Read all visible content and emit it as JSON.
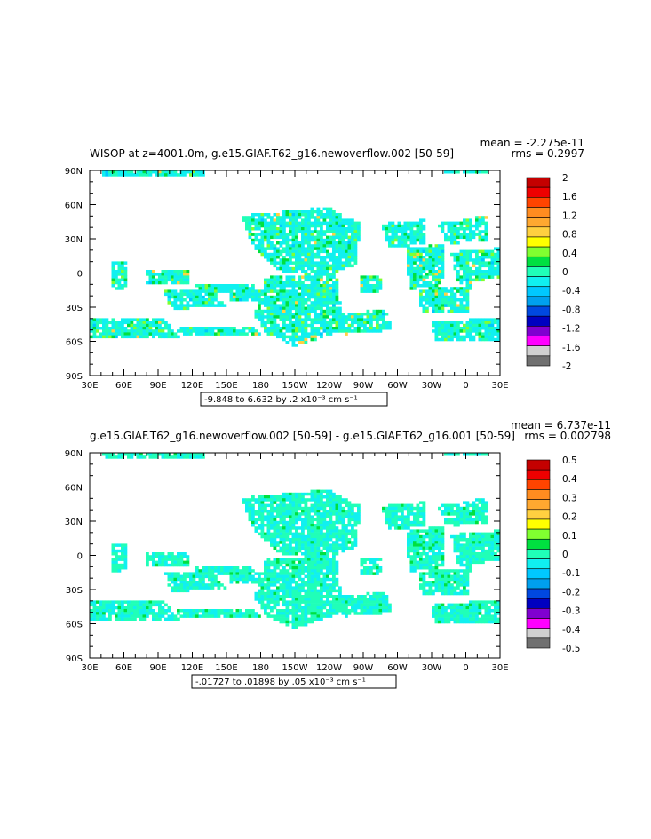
{
  "chart_data": [
    {
      "type": "heatmap",
      "title": "WISOP at z=4001.0m, g.e15.GIAF.T62_g16.newoverflow.002 [50-59]",
      "stats": [
        "mean = -2.275e-11",
        "rms = 0.2997"
      ],
      "x_ticks": [
        "30E",
        "60E",
        "90E",
        "120E",
        "150E",
        "180",
        "150W",
        "120W",
        "90W",
        "60W",
        "30W",
        "0",
        "30E"
      ],
      "y_ticks": [
        "90N",
        "60N",
        "30N",
        "0",
        "30S",
        "60S",
        "90S"
      ],
      "range_label": "-9.848 to 6.632 by .2 x10⁻³ cm s⁻¹",
      "colorbar_labels": [
        "2",
        "1.6",
        "1.2",
        "0.8",
        "0.4",
        "0",
        "-0.4",
        "-0.8",
        "-1.2",
        "-1.6",
        "-2"
      ],
      "colorbar_min": -2,
      "colorbar_max": 2,
      "colorbar_colors": [
        "#c40000",
        "#ee0000",
        "#ff4400",
        "#ff8c20",
        "#ffa830",
        "#ffd040",
        "#ffff00",
        "#80ff30",
        "#00e040",
        "#20ffb8",
        "#10f0f0",
        "#00c8ff",
        "#00a0ee",
        "#0048e0",
        "#0000c0",
        "#8000d0",
        "#ff00ff",
        "#d0d0d0",
        "#707070"
      ]
    },
    {
      "type": "heatmap",
      "title": "g.e15.GIAF.T62_g16.newoverflow.002 [50-59] - g.e15.GIAF.T62_g16.001 [50-59]",
      "stats": [
        "mean = 6.737e-11",
        "rms = 0.002798"
      ],
      "x_ticks": [
        "30E",
        "60E",
        "90E",
        "120E",
        "150E",
        "180",
        "150W",
        "120W",
        "90W",
        "60W",
        "30W",
        "0",
        "30E"
      ],
      "y_ticks": [
        "90N",
        "60N",
        "30N",
        "0",
        "30S",
        "60S",
        "90S"
      ],
      "range_label": "-.01727 to .01898 by .05 x10⁻³ cm s⁻¹",
      "colorbar_labels": [
        "0.5",
        "0.4",
        "0.3",
        "0.2",
        "0.1",
        "0",
        "-0.1",
        "-0.2",
        "-0.3",
        "-0.4",
        "-0.5"
      ],
      "colorbar_min": -0.5,
      "colorbar_max": 0.5,
      "colorbar_colors": [
        "#c40000",
        "#ee0000",
        "#ff4400",
        "#ff8c20",
        "#ffa830",
        "#ffd040",
        "#ffff00",
        "#80ff30",
        "#00e040",
        "#20ffb8",
        "#10f0f0",
        "#00c8ff",
        "#00a0ee",
        "#0048e0",
        "#0000c0",
        "#8000d0",
        "#ff00ff",
        "#d0d0d0",
        "#707070"
      ]
    }
  ]
}
